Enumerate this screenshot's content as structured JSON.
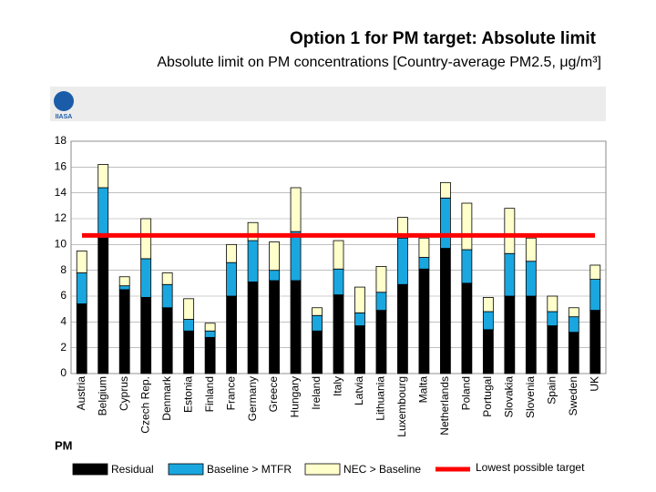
{
  "chart_data": {
    "type": "stacked-bar",
    "title": "Option 1 for PM target: Absolute limit",
    "subtitle": "Absolute limit on PM concentrations [Country-average PM2.5, μg/m³]",
    "logo": "IIASA",
    "axis_label": "PM",
    "categories": [
      "Austria",
      "Belgium",
      "Cyprus",
      "Czech Rep.",
      "Denmark",
      "Estonia",
      "Finland",
      "France",
      "Germany",
      "Greece",
      "Hungary",
      "Ireland",
      "Italy",
      "Latvia",
      "Lithuania",
      "Luxembourg",
      "Malta",
      "Netherlands",
      "Poland",
      "Portugal",
      "Slovakia",
      "Slovenia",
      "Spain",
      "Sweden",
      "UK"
    ],
    "series": [
      {
        "name": "Residual",
        "color": "#000000",
        "values": [
          5.4,
          10.5,
          6.5,
          5.9,
          5.1,
          3.3,
          2.8,
          6.0,
          7.1,
          7.2,
          7.2,
          3.3,
          6.1,
          3.7,
          4.9,
          6.9,
          8.1,
          9.7,
          7.0,
          3.4,
          6.0,
          6.0,
          3.7,
          3.2,
          4.9
        ]
      },
      {
        "name": "Baseline > MTFR",
        "color": "#1aa7e0",
        "values": [
          2.4,
          3.9,
          0.3,
          3.0,
          1.8,
          0.9,
          0.5,
          2.6,
          3.2,
          0.8,
          3.8,
          1.2,
          2.0,
          1.0,
          1.4,
          3.6,
          0.9,
          3.9,
          2.6,
          1.4,
          3.3,
          2.7,
          1.1,
          1.2,
          2.4
        ]
      },
      {
        "name": "NEC > Baseline",
        "color": "#ffffcc",
        "values": [
          1.7,
          1.8,
          0.7,
          3.1,
          0.9,
          1.6,
          0.6,
          1.4,
          1.4,
          2.2,
          3.4,
          0.6,
          2.2,
          2.0,
          2.0,
          1.6,
          1.5,
          1.2,
          3.6,
          1.1,
          3.5,
          1.8,
          1.2,
          0.7,
          1.1
        ]
      }
    ],
    "target": {
      "name": "Lowest possible target",
      "value": 10.7,
      "color": "#ff0000"
    },
    "ylim": [
      0,
      18
    ],
    "yticks": [
      0,
      2,
      4,
      6,
      8,
      10,
      12,
      14,
      16,
      18
    ],
    "grid": true
  }
}
